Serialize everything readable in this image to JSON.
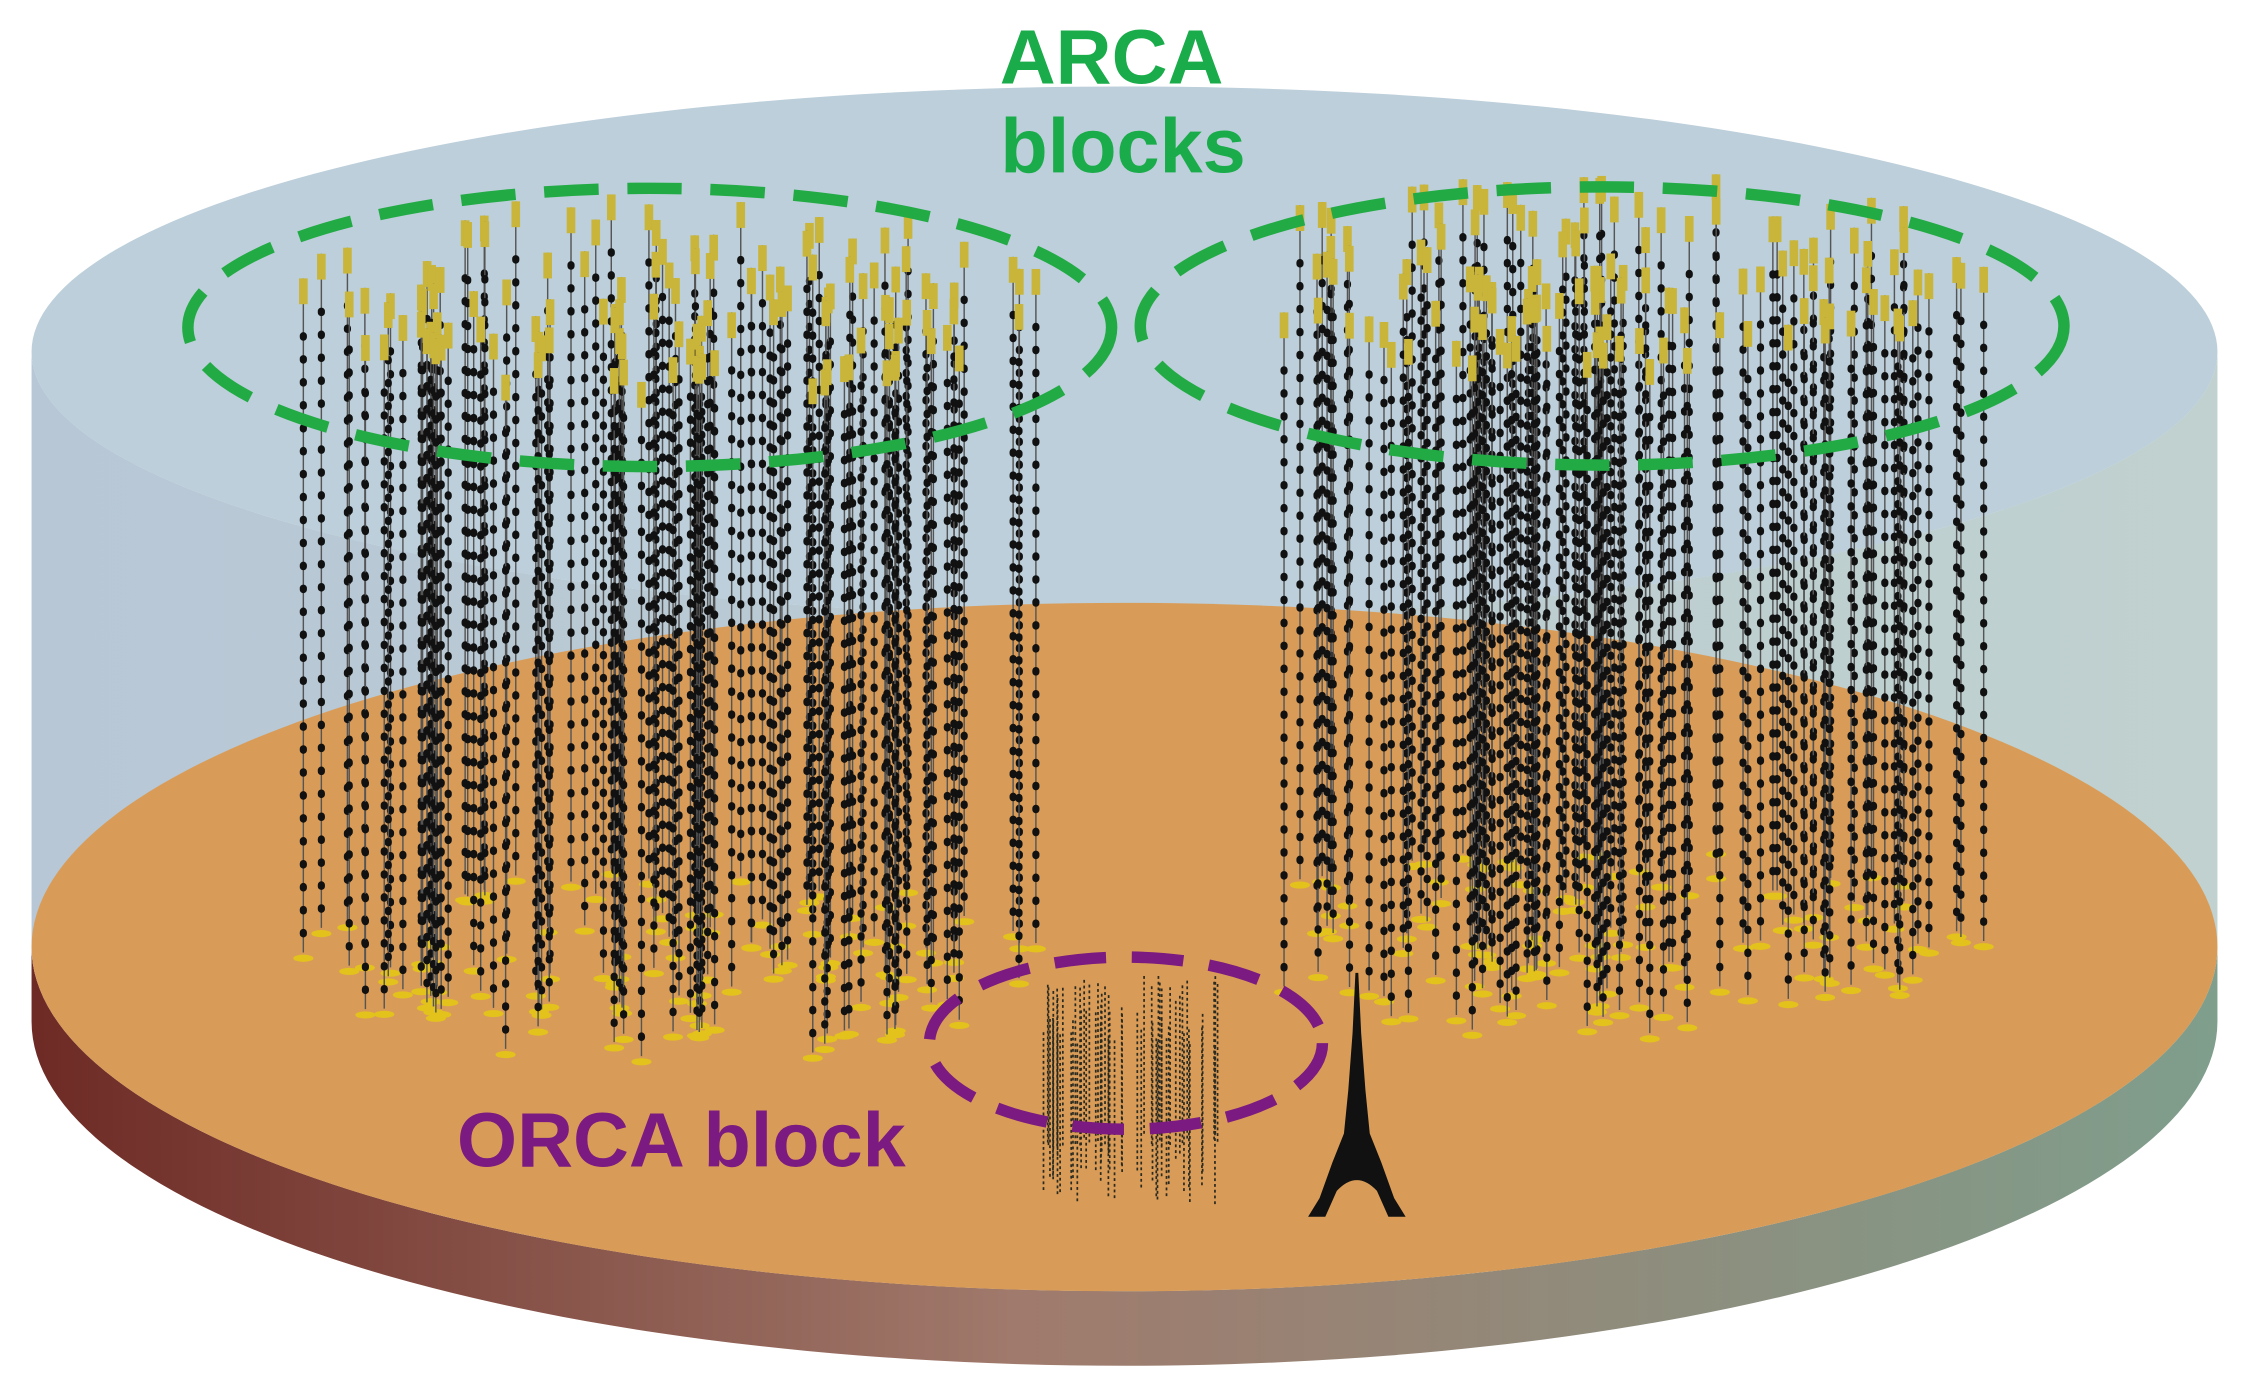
{
  "labels": {
    "arca": [
      "ARCA",
      "blocks"
    ],
    "orca": "ORCA block"
  }
}
